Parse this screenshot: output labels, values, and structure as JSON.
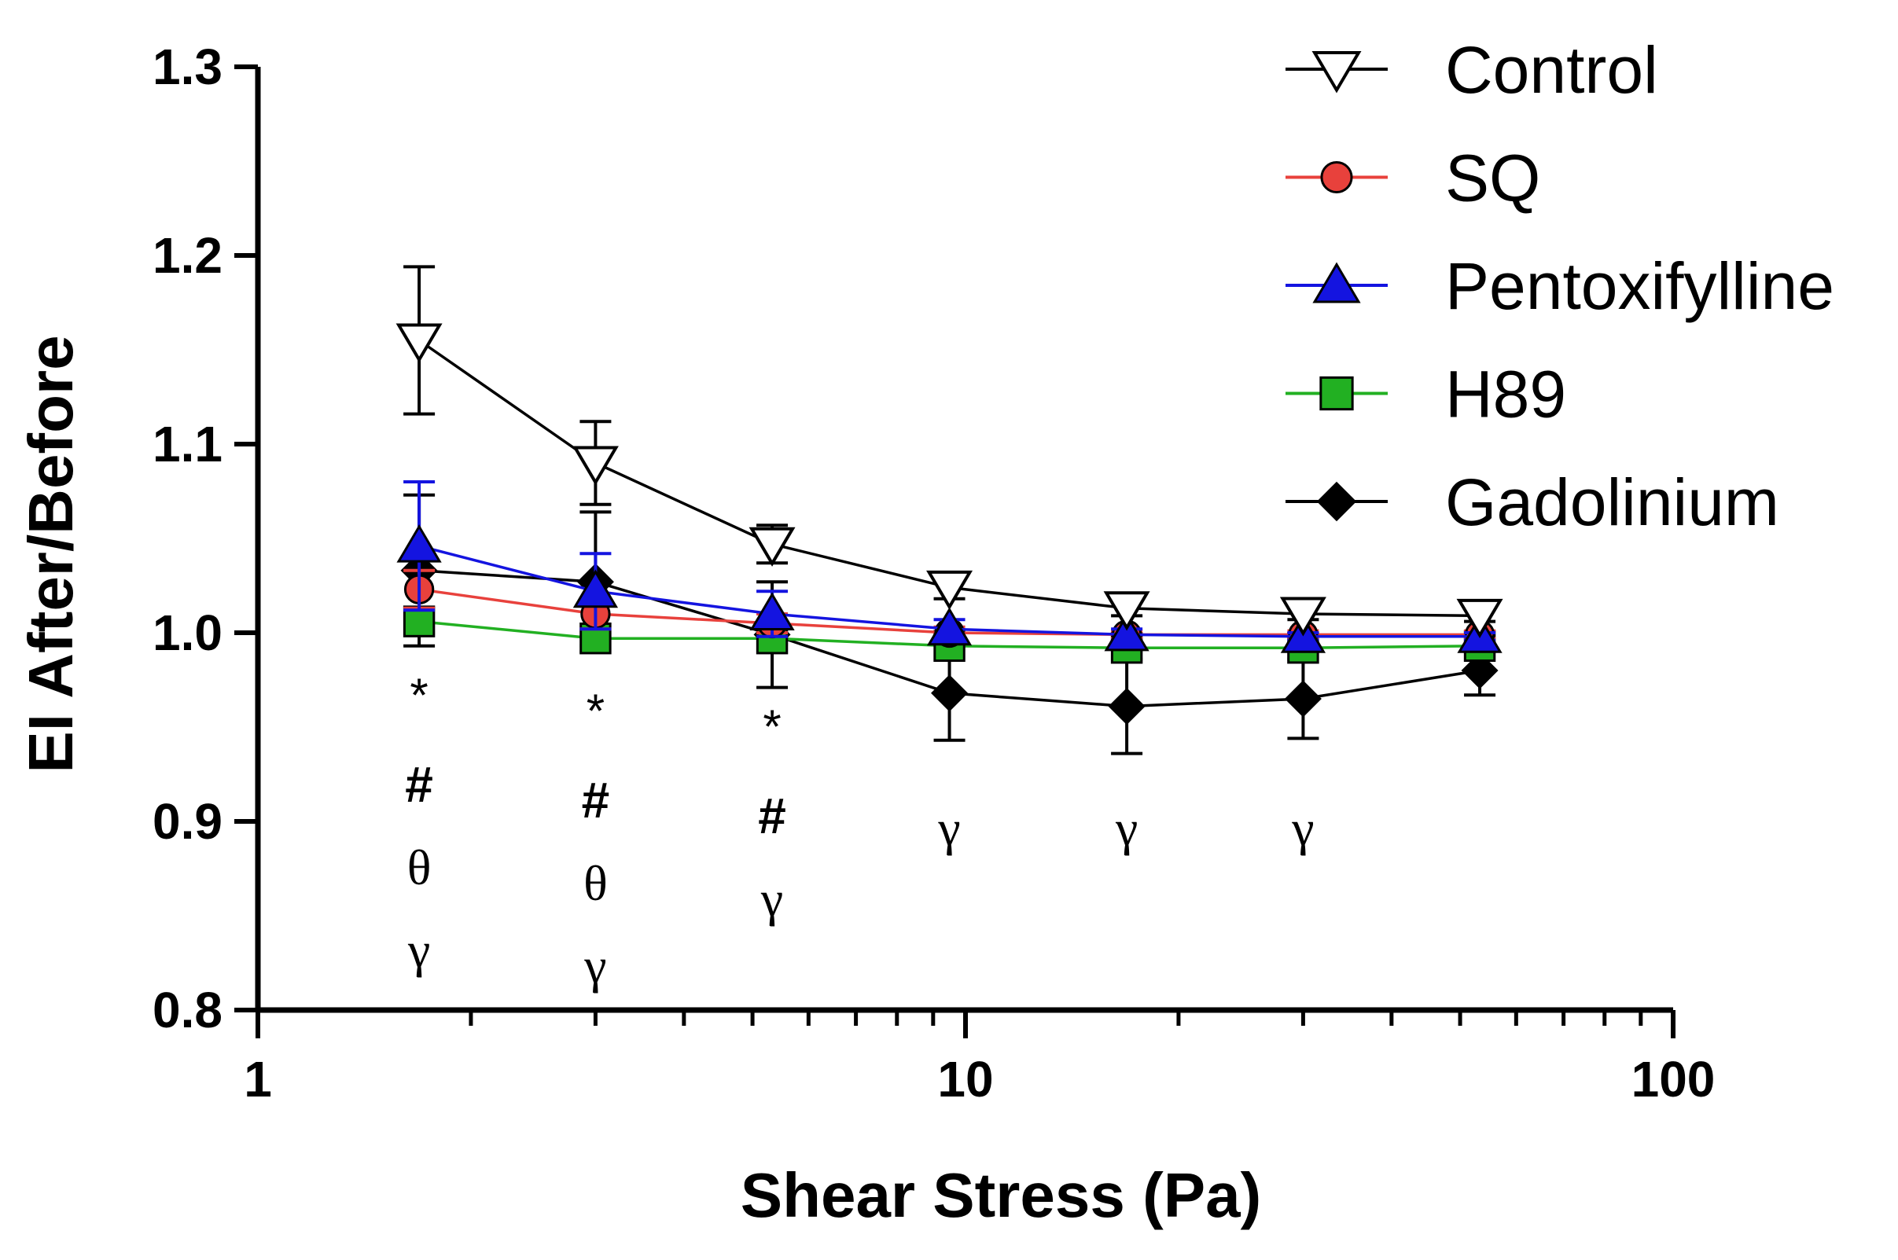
{
  "chart_data": {
    "type": "line",
    "title": "",
    "xlabel": "Shear Stress (Pa)",
    "ylabel": "EI After/Before",
    "xscale": "log",
    "xlim": [
      1,
      100
    ],
    "ylim": [
      0.8,
      1.3
    ],
    "x_ticks": [
      1,
      10,
      100
    ],
    "x_tick_labels": [
      "1",
      "10",
      "100"
    ],
    "y_ticks": [
      0.8,
      0.9,
      1.0,
      1.1,
      1.2,
      1.3
    ],
    "y_tick_labels": [
      "0.8",
      "0.9",
      "1.0",
      "1.1",
      "1.2",
      "1.3"
    ],
    "legend_position": "top-right",
    "x": [
      1.69,
      3.0,
      5.33,
      9.49,
      16.9,
      30.0,
      53.3
    ],
    "series": [
      {
        "name": "Control",
        "color": "#000000",
        "marker": "triangle-down-open",
        "values": [
          1.155,
          1.09,
          1.047,
          1.024,
          1.013,
          1.01,
          1.009
        ],
        "errors": [
          0.039,
          0.022,
          0.01,
          0.006,
          0.004,
          0.003,
          0.003
        ]
      },
      {
        "name": "SQ",
        "color": "#e8413c",
        "marker": "circle",
        "values": [
          1.023,
          1.01,
          1.005,
          1.0,
          0.999,
          0.999,
          0.999
        ],
        "errors": [
          0.01,
          0.008,
          0.005,
          0.003,
          0.002,
          0.002,
          0.002
        ]
      },
      {
        "name": "Pentoxifylline",
        "color": "#1414e0",
        "marker": "triangle-up",
        "values": [
          1.046,
          1.022,
          1.01,
          1.002,
          0.999,
          0.998,
          0.998
        ],
        "errors": [
          0.034,
          0.02,
          0.012,
          0.005,
          0.003,
          0.002,
          0.002
        ]
      },
      {
        "name": "H89",
        "color": "#22b022",
        "marker": "square",
        "values": [
          1.006,
          0.997,
          0.997,
          0.993,
          0.992,
          0.992,
          0.993
        ],
        "errors": [
          0.006,
          0.004,
          0.003,
          0.002,
          0.002,
          0.002,
          0.002
        ]
      },
      {
        "name": "Gadolinium",
        "color": "#000000",
        "marker": "diamond",
        "values": [
          1.033,
          1.027,
          0.999,
          0.968,
          0.961,
          0.965,
          0.98
        ],
        "errors": [
          0.04,
          0.037,
          0.028,
          0.025,
          0.025,
          0.021,
          0.013
        ]
      }
    ],
    "annotations": [
      {
        "x": 1.69,
        "labels": [
          "*",
          "#",
          "θ",
          "γ"
        ]
      },
      {
        "x": 3.0,
        "labels": [
          "*",
          "#",
          "θ",
          "γ"
        ]
      },
      {
        "x": 5.33,
        "labels": [
          "*",
          "#",
          "γ"
        ]
      },
      {
        "x": 9.49,
        "labels": [
          "γ"
        ]
      },
      {
        "x": 16.9,
        "labels": [
          "γ"
        ]
      },
      {
        "x": 30.0,
        "labels": [
          "γ"
        ]
      }
    ]
  }
}
